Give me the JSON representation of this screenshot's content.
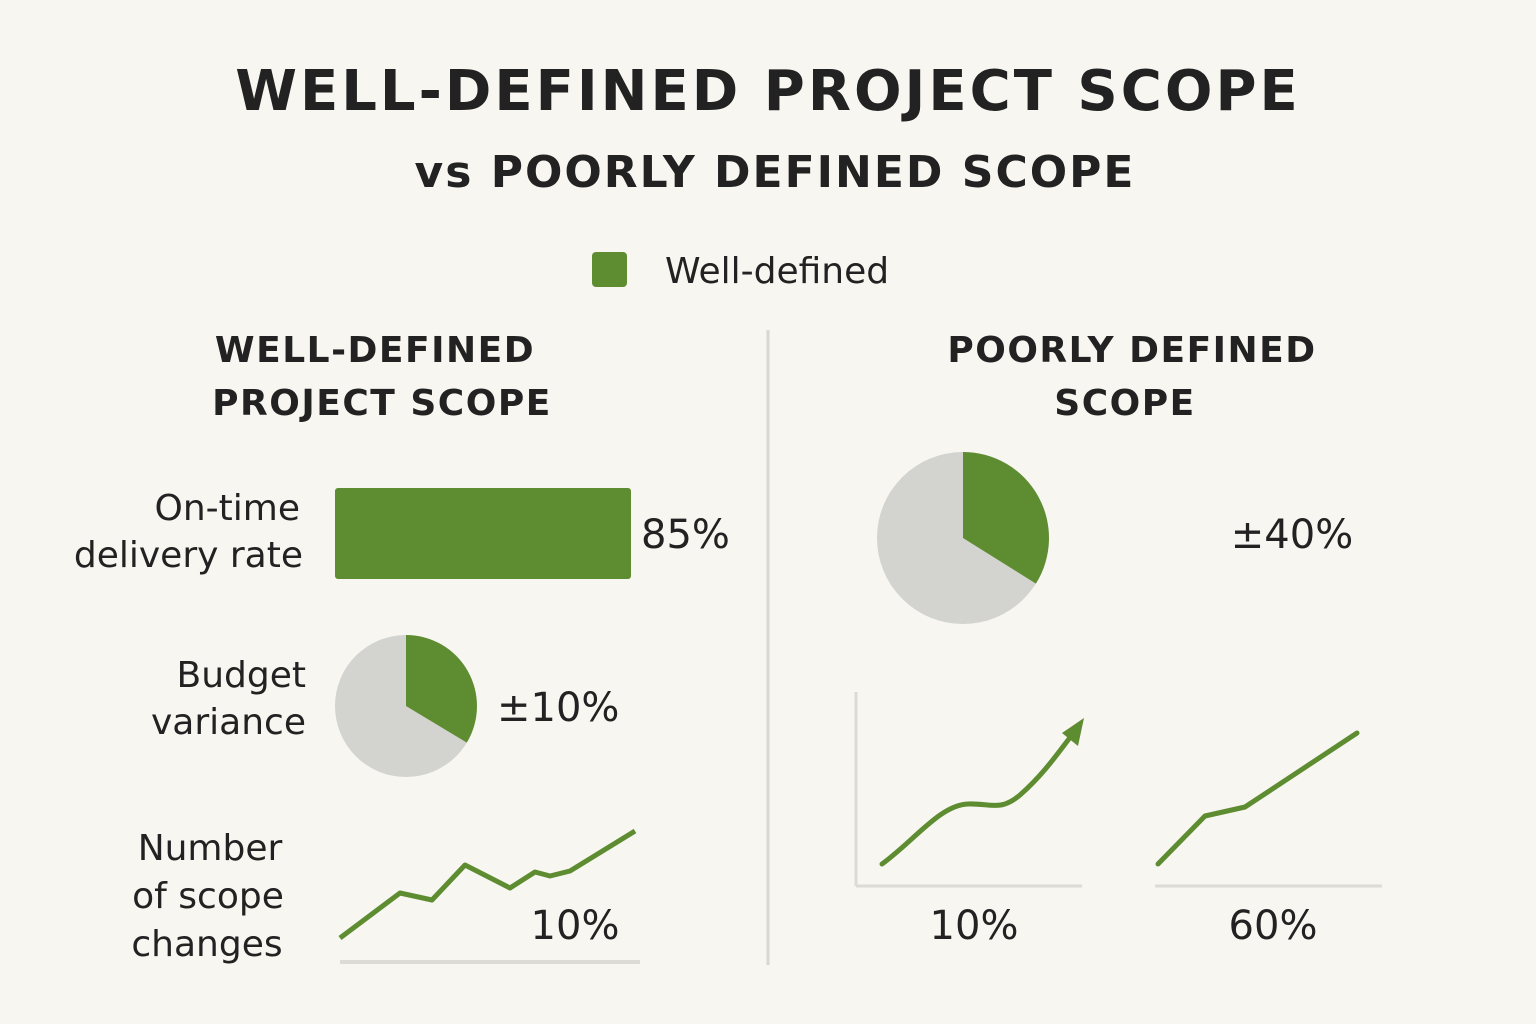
{
  "header": {
    "title": "WELL-DEFINED PROJECT SCOPE",
    "subtitle": "vs POORLY DEFINED SCOPE"
  },
  "legend": {
    "label": "Well-defined"
  },
  "left_panel": {
    "heading": [
      "WELL-DEFINED",
      "PROJECT SCOPE"
    ],
    "metrics": [
      {
        "label": [
          "On-time",
          "delivery rate"
        ],
        "value": "85%"
      },
      {
        "label": [
          "Budget",
          "variance"
        ],
        "value": "±10%"
      },
      {
        "label": [
          "Number",
          "of scope",
          "changes"
        ],
        "value": "10%"
      }
    ]
  },
  "right_panel": {
    "heading": [
      "POORLY DEFINED",
      "SCOPE"
    ],
    "values": [
      "±40%",
      "10%",
      "60%"
    ]
  }
}
